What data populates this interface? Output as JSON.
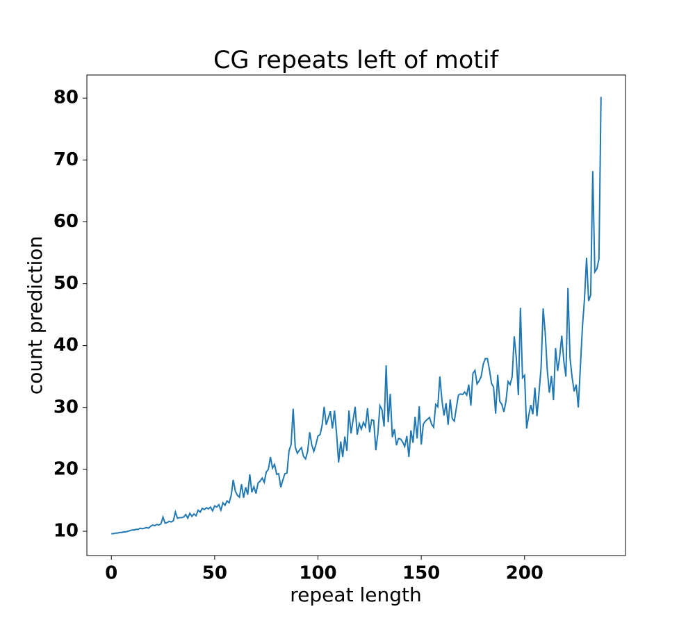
{
  "chart_data": {
    "type": "line",
    "title": "CG repeats left of motif",
    "x_label": "repeat length",
    "y_label": "count prediction",
    "x": [
      0,
      1,
      2,
      3,
      4,
      5,
      6,
      7,
      8,
      9,
      10,
      11,
      12,
      13,
      14,
      15,
      16,
      17,
      18,
      19,
      20,
      21,
      22,
      23,
      24,
      25,
      26,
      27,
      28,
      29,
      30,
      31,
      32,
      33,
      34,
      35,
      36,
      37,
      38,
      39,
      40,
      41,
      42,
      43,
      44,
      45,
      46,
      47,
      48,
      49,
      50,
      51,
      52,
      53,
      54,
      55,
      56,
      57,
      58,
      59,
      60,
      61,
      62,
      63,
      64,
      65,
      66,
      67,
      68,
      69,
      70,
      71,
      72,
      73,
      74,
      75,
      76,
      77,
      78,
      79,
      80,
      81,
      82,
      83,
      84,
      85,
      86,
      87,
      88,
      89,
      90,
      91,
      92,
      93,
      94,
      95,
      96,
      97,
      98,
      99,
      100,
      101,
      102,
      103,
      104,
      105,
      106,
      107,
      108,
      109,
      110,
      111,
      112,
      113,
      114,
      115,
      116,
      117,
      118,
      119,
      120,
      121,
      122,
      123,
      124,
      125,
      126,
      127,
      128,
      129,
      130,
      131,
      132,
      133,
      134,
      135,
      136,
      137,
      138,
      139,
      140,
      141,
      142,
      143,
      144,
      145,
      146,
      147,
      148,
      149,
      150,
      151,
      152,
      153,
      154,
      155,
      156,
      157,
      158,
      159,
      160,
      161,
      162,
      163,
      164,
      165,
      166,
      167,
      168,
      169,
      170,
      171,
      172,
      173,
      174,
      175,
      176,
      177,
      178,
      179,
      180,
      181,
      182,
      183,
      184,
      185,
      186,
      187,
      188,
      189,
      190,
      191,
      192,
      193,
      194,
      195,
      196,
      197,
      198,
      199,
      200,
      201,
      202,
      203,
      204,
      205,
      206,
      207,
      208,
      209,
      210,
      211,
      212,
      213,
      214,
      215,
      216,
      217,
      218,
      219,
      220,
      221,
      222,
      223,
      224,
      225,
      226,
      227,
      228,
      229,
      230,
      231,
      232,
      233,
      234,
      235,
      236,
      237
    ],
    "series": [
      {
        "name": "count prediction",
        "color": "#1f77b4",
        "values": [
          9.6,
          9.6,
          9.7,
          9.7,
          9.8,
          9.8,
          9.9,
          9.9,
          10.0,
          10.1,
          10.2,
          10.2,
          10.3,
          10.3,
          10.5,
          10.4,
          10.5,
          10.6,
          10.5,
          10.8,
          11.0,
          10.9,
          11.1,
          11.0,
          11.2,
          12.3,
          11.3,
          11.4,
          11.6,
          11.5,
          11.7,
          13.1,
          12.1,
          12.2,
          12.2,
          12.3,
          12.7,
          12.1,
          12.9,
          12.4,
          12.8,
          12.5,
          13.4,
          13.1,
          13.7,
          13.5,
          13.8,
          13.6,
          13.9,
          13.3,
          14.1,
          13.9,
          14.3,
          13.4,
          14.6,
          14.2,
          14.9,
          14.6,
          15.8,
          18.3,
          16.5,
          15.8,
          15.5,
          17.6,
          15.4,
          17.1,
          15.9,
          19.2,
          16.3,
          17.2,
          16.1,
          17.8,
          18.1,
          18.6,
          17.9,
          19.6,
          20.0,
          22.0,
          20.2,
          20.8,
          19.2,
          19.3,
          17.1,
          18.3,
          19.3,
          19.4,
          23.0,
          24.0,
          29.8,
          23.6,
          22.6,
          23.1,
          23.5,
          22.1,
          21.7,
          22.9,
          26.0,
          24.0,
          22.9,
          24.0,
          25.4,
          25.6,
          27.1,
          30.1,
          27.2,
          28.3,
          29.4,
          26.6,
          29.5,
          25.8,
          21.1,
          24.5,
          22.0,
          25.3,
          23.0,
          29.5,
          25.8,
          28.0,
          30.1,
          25.6,
          27.4,
          26.5,
          27.6,
          26.9,
          29.9,
          26.0,
          28.0,
          27.9,
          23.1,
          25.8,
          30.3,
          29.6,
          26.9,
          36.8,
          27.6,
          32.2,
          25.2,
          26.5,
          23.9,
          25.0,
          24.9,
          24.4,
          23.7,
          25.4,
          22.0,
          26.3,
          24.3,
          28.5,
          25.0,
          30.2,
          24.0,
          27.3,
          27.8,
          28.1,
          28.4,
          27.3,
          26.8,
          30.5,
          30.1,
          35.0,
          31.2,
          28.7,
          30.7,
          27.2,
          31.3,
          28.2,
          27.8,
          30.0,
          32.0,
          32.2,
          32.1,
          32.5,
          32.0,
          33.7,
          30.3,
          35.5,
          36.0,
          33.8,
          34.3,
          35.0,
          37.0,
          37.9,
          37.9,
          36.1,
          33.9,
          33.3,
          29.0,
          35.3,
          31.0,
          30.5,
          29.3,
          31.0,
          34.2,
          33.7,
          35.0,
          41.5,
          38.0,
          32.0,
          46.1,
          34.8,
          35.2,
          26.6,
          28.7,
          30.4,
          28.9,
          33.2,
          28.6,
          32.4,
          36.5,
          46.0,
          42.0,
          36.0,
          32.4,
          35.1,
          31.2,
          39.6,
          35.9,
          38.2,
          41.6,
          37.5,
          35.0,
          49.3,
          38.0,
          34.9,
          32.6,
          33.7,
          30.0,
          36.5,
          43.0,
          47.5,
          54.2,
          47.2,
          48.2,
          68.2,
          51.9,
          52.4,
          54.0,
          80.2
        ]
      }
    ],
    "xlim": [
      -11.85,
      248.85
    ],
    "xticks": [
      0,
      50,
      100,
      150,
      200
    ],
    "ylim": [
      6.07,
      83.73
    ],
    "yticks": [
      10,
      20,
      30,
      40,
      50,
      60,
      70,
      80
    ]
  }
}
